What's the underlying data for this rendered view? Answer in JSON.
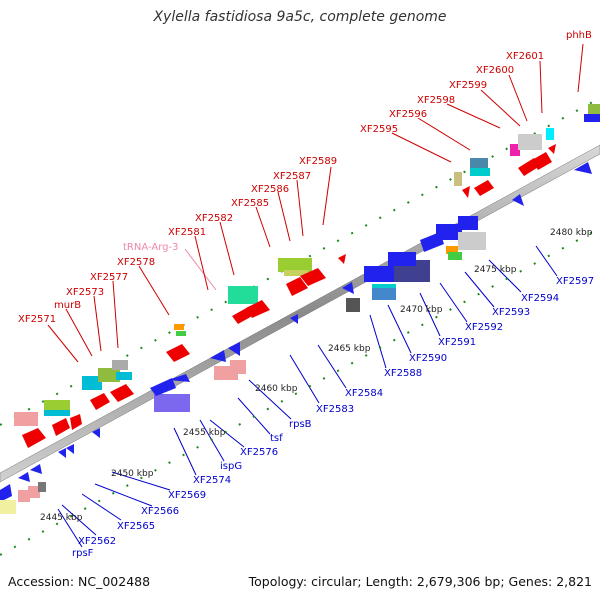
{
  "title": "Xylella fastidiosa 9a5c, complete genome",
  "footer": {
    "accession": "Accession: NC_002488",
    "summary": "Topology: circular; Length: 2,679,306 bp; Genes: 2,821"
  },
  "colors": {
    "forward_label": "#cc0000",
    "reverse_label": "#0000cc",
    "trna_label": "#ee88aa",
    "backbone": "#999999",
    "tick": "#1a8a1a"
  },
  "scale_labels": [
    "2445 kbp",
    "2450 kbp",
    "2455 kbp",
    "2460 kbp",
    "2465 kbp",
    "2470 kbp",
    "2475 kbp",
    "2480 kbp"
  ],
  "top_labels": [
    "XF2571",
    "murB",
    "XF2573",
    "XF2577",
    "XF2578",
    "tRNA-Arg-3",
    "XF2581",
    "XF2582",
    "XF2585",
    "XF2586",
    "XF2587",
    "XF2589",
    "XF2595",
    "XF2596",
    "XF2598",
    "XF2599",
    "XF2600",
    "XF2601",
    "phhB"
  ],
  "bottom_labels": [
    "rpsF",
    "XF2562",
    "XF2565",
    "XF2566",
    "XF2569",
    "XF2574",
    "ispG",
    "XF2576",
    "tsf",
    "rpsB",
    "XF2583",
    "XF2584",
    "XF2588",
    "XF2590",
    "XF2591",
    "XF2592",
    "XF2593",
    "XF2594",
    "XF2597"
  ]
}
